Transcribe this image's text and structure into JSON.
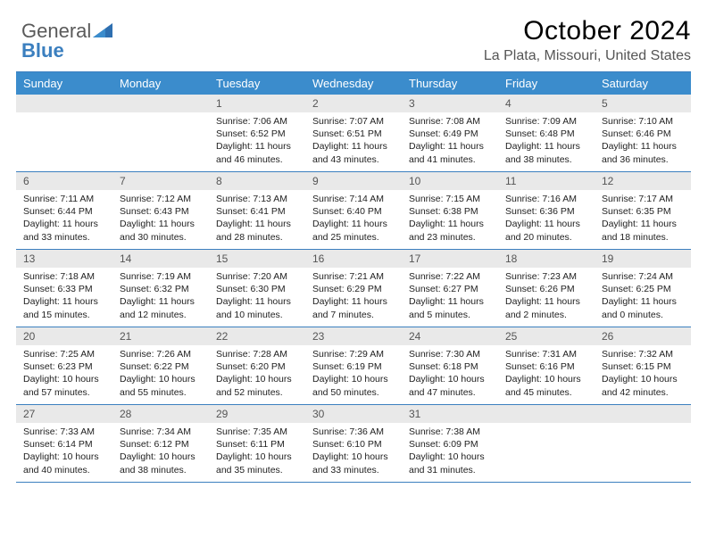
{
  "logo": {
    "text_gray": "General",
    "text_blue": "Blue"
  },
  "title": "October 2024",
  "location": "La Plata, Missouri, United States",
  "colors": {
    "header_bg": "#3b8ccc",
    "header_text": "#ffffff",
    "daynum_bg": "#e9e9e9",
    "daynum_text": "#555555",
    "rule": "#3b7fbf",
    "body_text": "#222222",
    "logo_gray": "#5a5a5a",
    "logo_blue": "#3b7fbf",
    "page_bg": "#ffffff"
  },
  "typography": {
    "title_fontsize": 30,
    "location_fontsize": 16,
    "header_fontsize": 13,
    "daynum_fontsize": 12,
    "body_fontsize": 10.5
  },
  "days_of_week": [
    "Sunday",
    "Monday",
    "Tuesday",
    "Wednesday",
    "Thursday",
    "Friday",
    "Saturday"
  ],
  "weeks": [
    [
      {
        "n": "",
        "empty": true
      },
      {
        "n": "",
        "empty": true
      },
      {
        "n": "1",
        "sunrise": "Sunrise: 7:06 AM",
        "sunset": "Sunset: 6:52 PM",
        "daylight1": "Daylight: 11 hours",
        "daylight2": "and 46 minutes."
      },
      {
        "n": "2",
        "sunrise": "Sunrise: 7:07 AM",
        "sunset": "Sunset: 6:51 PM",
        "daylight1": "Daylight: 11 hours",
        "daylight2": "and 43 minutes."
      },
      {
        "n": "3",
        "sunrise": "Sunrise: 7:08 AM",
        "sunset": "Sunset: 6:49 PM",
        "daylight1": "Daylight: 11 hours",
        "daylight2": "and 41 minutes."
      },
      {
        "n": "4",
        "sunrise": "Sunrise: 7:09 AM",
        "sunset": "Sunset: 6:48 PM",
        "daylight1": "Daylight: 11 hours",
        "daylight2": "and 38 minutes."
      },
      {
        "n": "5",
        "sunrise": "Sunrise: 7:10 AM",
        "sunset": "Sunset: 6:46 PM",
        "daylight1": "Daylight: 11 hours",
        "daylight2": "and 36 minutes."
      }
    ],
    [
      {
        "n": "6",
        "sunrise": "Sunrise: 7:11 AM",
        "sunset": "Sunset: 6:44 PM",
        "daylight1": "Daylight: 11 hours",
        "daylight2": "and 33 minutes."
      },
      {
        "n": "7",
        "sunrise": "Sunrise: 7:12 AM",
        "sunset": "Sunset: 6:43 PM",
        "daylight1": "Daylight: 11 hours",
        "daylight2": "and 30 minutes."
      },
      {
        "n": "8",
        "sunrise": "Sunrise: 7:13 AM",
        "sunset": "Sunset: 6:41 PM",
        "daylight1": "Daylight: 11 hours",
        "daylight2": "and 28 minutes."
      },
      {
        "n": "9",
        "sunrise": "Sunrise: 7:14 AM",
        "sunset": "Sunset: 6:40 PM",
        "daylight1": "Daylight: 11 hours",
        "daylight2": "and 25 minutes."
      },
      {
        "n": "10",
        "sunrise": "Sunrise: 7:15 AM",
        "sunset": "Sunset: 6:38 PM",
        "daylight1": "Daylight: 11 hours",
        "daylight2": "and 23 minutes."
      },
      {
        "n": "11",
        "sunrise": "Sunrise: 7:16 AM",
        "sunset": "Sunset: 6:36 PM",
        "daylight1": "Daylight: 11 hours",
        "daylight2": "and 20 minutes."
      },
      {
        "n": "12",
        "sunrise": "Sunrise: 7:17 AM",
        "sunset": "Sunset: 6:35 PM",
        "daylight1": "Daylight: 11 hours",
        "daylight2": "and 18 minutes."
      }
    ],
    [
      {
        "n": "13",
        "sunrise": "Sunrise: 7:18 AM",
        "sunset": "Sunset: 6:33 PM",
        "daylight1": "Daylight: 11 hours",
        "daylight2": "and 15 minutes."
      },
      {
        "n": "14",
        "sunrise": "Sunrise: 7:19 AM",
        "sunset": "Sunset: 6:32 PM",
        "daylight1": "Daylight: 11 hours",
        "daylight2": "and 12 minutes."
      },
      {
        "n": "15",
        "sunrise": "Sunrise: 7:20 AM",
        "sunset": "Sunset: 6:30 PM",
        "daylight1": "Daylight: 11 hours",
        "daylight2": "and 10 minutes."
      },
      {
        "n": "16",
        "sunrise": "Sunrise: 7:21 AM",
        "sunset": "Sunset: 6:29 PM",
        "daylight1": "Daylight: 11 hours",
        "daylight2": "and 7 minutes."
      },
      {
        "n": "17",
        "sunrise": "Sunrise: 7:22 AM",
        "sunset": "Sunset: 6:27 PM",
        "daylight1": "Daylight: 11 hours",
        "daylight2": "and 5 minutes."
      },
      {
        "n": "18",
        "sunrise": "Sunrise: 7:23 AM",
        "sunset": "Sunset: 6:26 PM",
        "daylight1": "Daylight: 11 hours",
        "daylight2": "and 2 minutes."
      },
      {
        "n": "19",
        "sunrise": "Sunrise: 7:24 AM",
        "sunset": "Sunset: 6:25 PM",
        "daylight1": "Daylight: 11 hours",
        "daylight2": "and 0 minutes."
      }
    ],
    [
      {
        "n": "20",
        "sunrise": "Sunrise: 7:25 AM",
        "sunset": "Sunset: 6:23 PM",
        "daylight1": "Daylight: 10 hours",
        "daylight2": "and 57 minutes."
      },
      {
        "n": "21",
        "sunrise": "Sunrise: 7:26 AM",
        "sunset": "Sunset: 6:22 PM",
        "daylight1": "Daylight: 10 hours",
        "daylight2": "and 55 minutes."
      },
      {
        "n": "22",
        "sunrise": "Sunrise: 7:28 AM",
        "sunset": "Sunset: 6:20 PM",
        "daylight1": "Daylight: 10 hours",
        "daylight2": "and 52 minutes."
      },
      {
        "n": "23",
        "sunrise": "Sunrise: 7:29 AM",
        "sunset": "Sunset: 6:19 PM",
        "daylight1": "Daylight: 10 hours",
        "daylight2": "and 50 minutes."
      },
      {
        "n": "24",
        "sunrise": "Sunrise: 7:30 AM",
        "sunset": "Sunset: 6:18 PM",
        "daylight1": "Daylight: 10 hours",
        "daylight2": "and 47 minutes."
      },
      {
        "n": "25",
        "sunrise": "Sunrise: 7:31 AM",
        "sunset": "Sunset: 6:16 PM",
        "daylight1": "Daylight: 10 hours",
        "daylight2": "and 45 minutes."
      },
      {
        "n": "26",
        "sunrise": "Sunrise: 7:32 AM",
        "sunset": "Sunset: 6:15 PM",
        "daylight1": "Daylight: 10 hours",
        "daylight2": "and 42 minutes."
      }
    ],
    [
      {
        "n": "27",
        "sunrise": "Sunrise: 7:33 AM",
        "sunset": "Sunset: 6:14 PM",
        "daylight1": "Daylight: 10 hours",
        "daylight2": "and 40 minutes."
      },
      {
        "n": "28",
        "sunrise": "Sunrise: 7:34 AM",
        "sunset": "Sunset: 6:12 PM",
        "daylight1": "Daylight: 10 hours",
        "daylight2": "and 38 minutes."
      },
      {
        "n": "29",
        "sunrise": "Sunrise: 7:35 AM",
        "sunset": "Sunset: 6:11 PM",
        "daylight1": "Daylight: 10 hours",
        "daylight2": "and 35 minutes."
      },
      {
        "n": "30",
        "sunrise": "Sunrise: 7:36 AM",
        "sunset": "Sunset: 6:10 PM",
        "daylight1": "Daylight: 10 hours",
        "daylight2": "and 33 minutes."
      },
      {
        "n": "31",
        "sunrise": "Sunrise: 7:38 AM",
        "sunset": "Sunset: 6:09 PM",
        "daylight1": "Daylight: 10 hours",
        "daylight2": "and 31 minutes."
      },
      {
        "n": "",
        "empty": true
      },
      {
        "n": "",
        "empty": true
      }
    ]
  ]
}
